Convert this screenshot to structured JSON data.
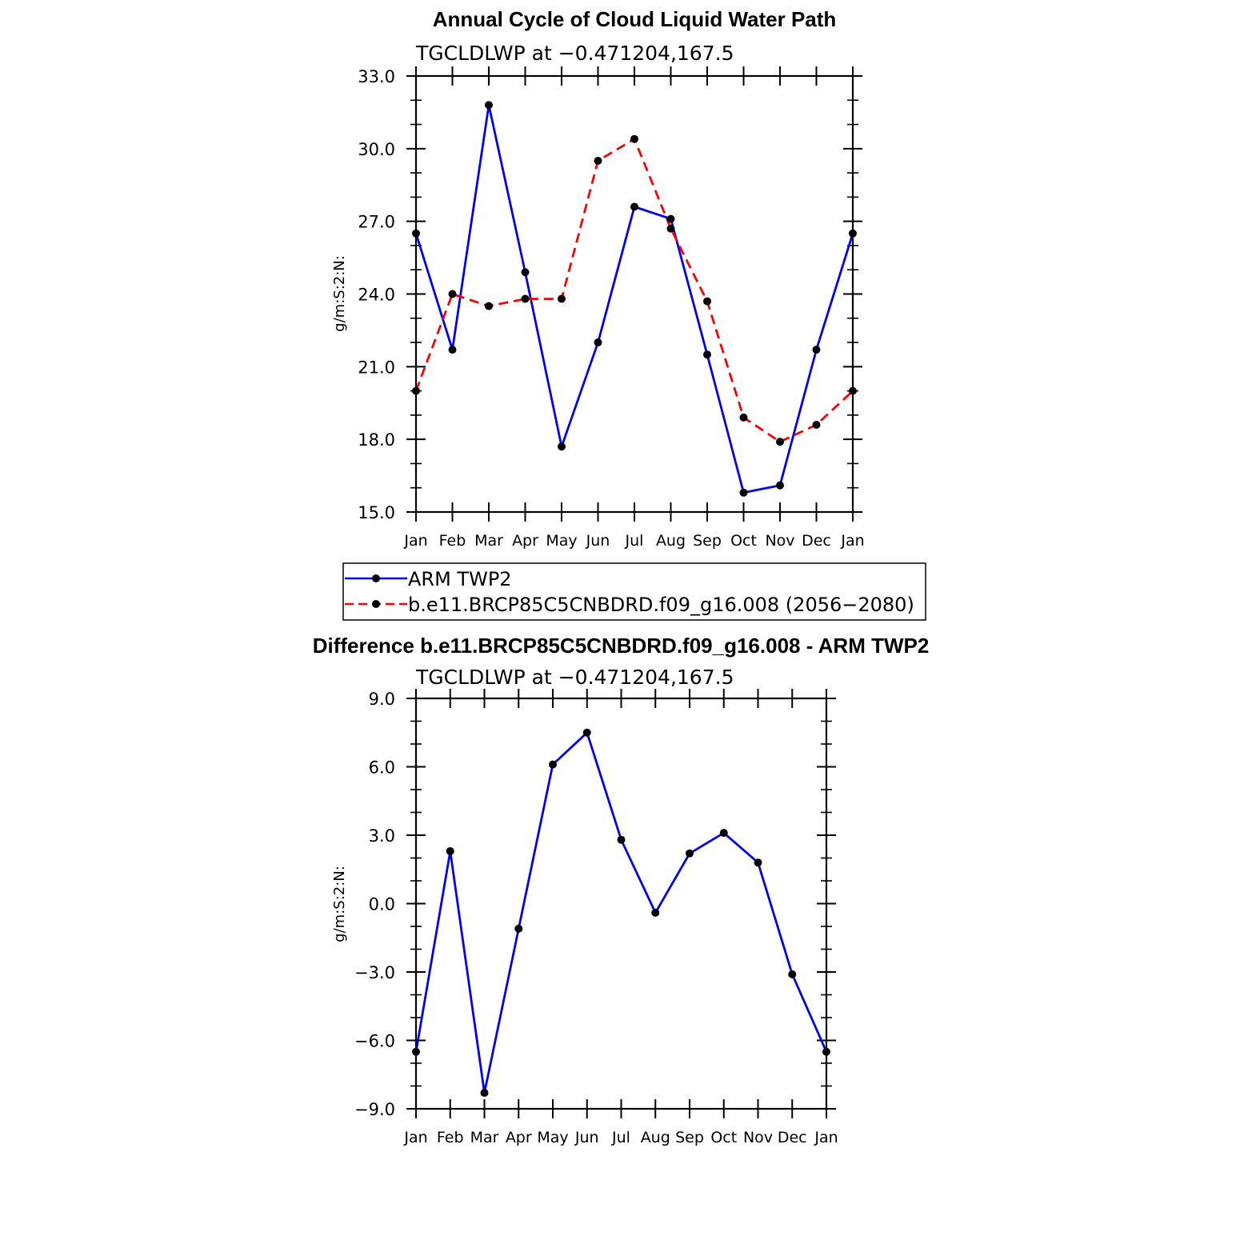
{
  "chart_data": [
    {
      "type": "line",
      "title": "Annual Cycle of Cloud Liquid Water Path",
      "subtitle": "TGCLDLWP at −0.471204,167.5",
      "xlabel": "",
      "ylabel": "g/m:S:2:N:",
      "ylim": [
        15.0,
        33.0
      ],
      "yticks": [
        "15.0",
        "18.0",
        "21.0",
        "24.0",
        "27.0",
        "30.0",
        "33.0"
      ],
      "categories": [
        "Jan",
        "Feb",
        "Mar",
        "Apr",
        "May",
        "Jun",
        "Jul",
        "Aug",
        "Sep",
        "Oct",
        "Nov",
        "Dec",
        "Jan"
      ],
      "grid": false,
      "legend_position": "bottom",
      "series": [
        {
          "name": "ARM TWP2",
          "color": "#0000ff",
          "dash": "solid",
          "values": [
            26.5,
            21.7,
            31.8,
            24.9,
            17.7,
            22.0,
            27.6,
            27.1,
            21.5,
            15.8,
            16.1,
            21.7,
            26.5
          ]
        },
        {
          "name": "b.e11.BRCP85C5CNBDRD.f09_g16.008 (2056−2080)",
          "color": "#ff0000",
          "dash": "dashed",
          "values": [
            20.0,
            24.0,
            23.5,
            23.8,
            23.8,
            29.5,
            30.4,
            26.7,
            23.7,
            18.9,
            17.9,
            18.6,
            20.0
          ]
        }
      ]
    },
    {
      "type": "line",
      "title": "Difference b.e11.BRCP85C5CNBDRD.f09_g16.008 - ARM TWP2",
      "subtitle": "TGCLDLWP at −0.471204,167.5",
      "xlabel": "",
      "ylabel": "g/m:S:2:N:",
      "ylim": [
        -9.0,
        9.0
      ],
      "yticks": [
        "−9.0",
        "−6.0",
        "−3.0",
        "0.0",
        "3.0",
        "6.0",
        "9.0"
      ],
      "categories": [
        "Jan",
        "Feb",
        "Mar",
        "Apr",
        "May",
        "Jun",
        "Jul",
        "Aug",
        "Sep",
        "Oct",
        "Nov",
        "Dec",
        "Jan"
      ],
      "grid": false,
      "series": [
        {
          "color": "#0000ff",
          "dash": "solid",
          "values": [
            -6.5,
            2.3,
            -8.3,
            -1.1,
            6.1,
            7.5,
            2.8,
            -0.4,
            2.2,
            3.1,
            1.8,
            -3.1,
            -6.5
          ]
        }
      ]
    }
  ]
}
